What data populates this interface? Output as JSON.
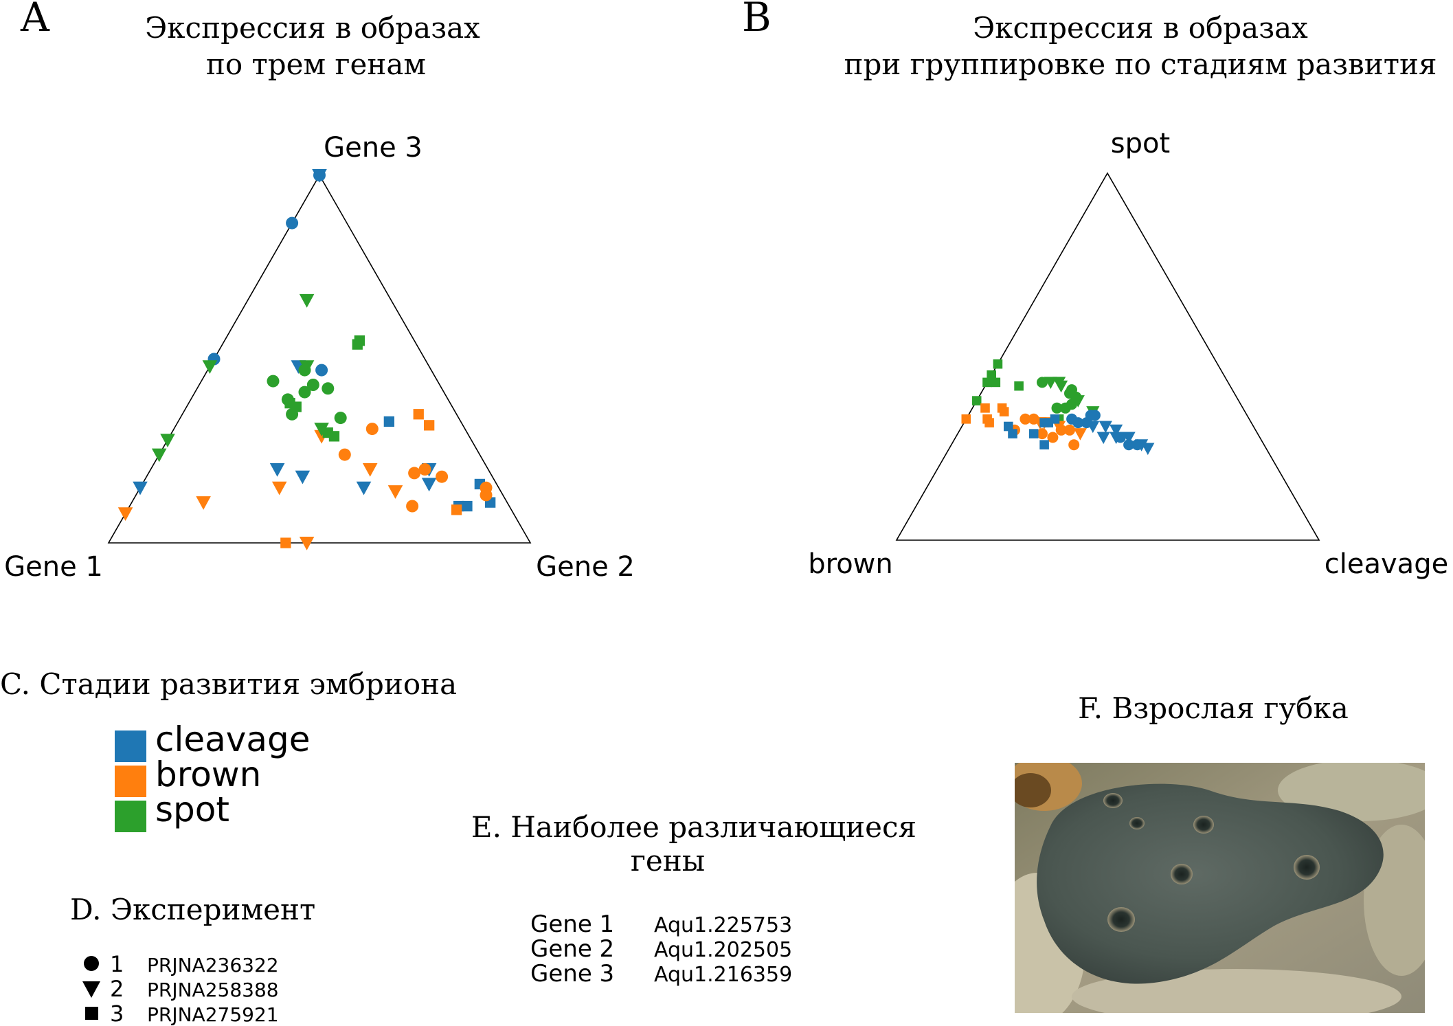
{
  "colors": {
    "cleavage": "#1f77b4",
    "brown": "#ff7f0e",
    "spot": "#2ca02c"
  },
  "panel_a": {
    "letter": "A",
    "title_line1": "Экспрессия в образах",
    "title_line2": "по трем генам",
    "vertex_top": "Gene 3",
    "vertex_left": "Gene 1",
    "vertex_right": "Gene 2"
  },
  "panel_b": {
    "letter": "B",
    "title_line1": "Экспрессия в образах",
    "title_line2": "при группировке по стадиям развития",
    "vertex_top": "spot",
    "vertex_left": "brown",
    "vertex_right": "cleavage"
  },
  "legend_stages": {
    "title": "C. Стадии развития эмбриона",
    "items": [
      {
        "label": "cleavage",
        "color": "#1f77b4"
      },
      {
        "label": "brown",
        "color": "#ff7f0e"
      },
      {
        "label": "spot",
        "color": "#2ca02c"
      }
    ]
  },
  "legend_experiment": {
    "title": "D. Эксперимент",
    "items": [
      {
        "marker": "circle",
        "num": "1",
        "id": "PRJNA236322"
      },
      {
        "marker": "triangle-down",
        "num": "2",
        "id": "PRJNA258388"
      },
      {
        "marker": "square",
        "num": "3",
        "id": "PRJNA275921"
      }
    ]
  },
  "genes": {
    "title_line1": "E. Наиболее различающиеся",
    "title_line2": "гены",
    "items": [
      {
        "name": "Gene 1",
        "id": "Aqu1.225753"
      },
      {
        "name": "Gene 2",
        "id": "Aqu1.202505"
      },
      {
        "name": "Gene 3",
        "id": "Aqu1.216359"
      }
    ]
  },
  "photo": {
    "title": "F. Взрослая губка"
  },
  "chart_data": [
    {
      "type": "scatter",
      "subtype": "ternary",
      "title": "Экспрессия в образах по трем генам",
      "axes": [
        "Gene 1",
        "Gene 2",
        "Gene 3"
      ],
      "series": [
        {
          "name": "cleavage",
          "points": [
            {
              "a": 0.0,
              "b": 0.0,
              "c": 1.0,
              "m": "triangle-down"
            },
            {
              "a": 0.0,
              "b": 0.0,
              "c": 1.0,
              "m": "circle"
            },
            {
              "a": 0.13,
              "b": 0.0,
              "c": 0.87,
              "m": "circle"
            },
            {
              "a": 0.31,
              "b": 0.21,
              "c": 0.48,
              "m": "triangle-down"
            },
            {
              "a": 0.26,
              "b": 0.27,
              "c": 0.47,
              "m": "circle"
            },
            {
              "a": 0.5,
              "b": 0.0,
              "c": 0.5,
              "m": "circle"
            },
            {
              "a": 0.17,
              "b": 0.5,
              "c": 0.33,
              "m": "square"
            },
            {
              "a": 0.16,
              "b": 0.68,
              "c": 0.16,
              "m": "triangle-down"
            },
            {
              "a": 0.14,
              "b": 0.66,
              "c": 0.2,
              "m": "triangle-down"
            },
            {
              "a": 0.32,
              "b": 0.53,
              "c": 0.15,
              "m": "triangle-down"
            },
            {
              "a": 0.04,
              "b": 0.8,
              "c": 0.16,
              "m": "square"
            },
            {
              "a": 0.04,
              "b": 0.85,
              "c": 0.11,
              "m": "square"
            },
            {
              "a": 0.5,
              "b": 0.3,
              "c": 0.2,
              "m": "triangle-down"
            },
            {
              "a": 0.45,
              "b": 0.37,
              "c": 0.18,
              "m": "triangle-down"
            },
            {
              "a": 0.1,
              "b": 0.8,
              "c": 0.1,
              "m": "square"
            },
            {
              "a": 0.12,
              "b": 0.78,
              "c": 0.1,
              "m": "square"
            },
            {
              "a": 0.85,
              "b": 0.0,
              "c": 0.15,
              "m": "triangle-down"
            }
          ]
        },
        {
          "name": "brown",
          "points": [
            {
              "a": 0.22,
              "b": 0.47,
              "c": 0.31,
              "m": "circle"
            },
            {
              "a": 0.09,
              "b": 0.56,
              "c": 0.35,
              "m": "square"
            },
            {
              "a": 0.08,
              "b": 0.6,
              "c": 0.32,
              "m": "square"
            },
            {
              "a": 0.35,
              "b": 0.36,
              "c": 0.29,
              "m": "triangle-down"
            },
            {
              "a": 0.32,
              "b": 0.44,
              "c": 0.24,
              "m": "circle"
            },
            {
              "a": 0.28,
              "b": 0.52,
              "c": 0.2,
              "m": "triangle-down"
            },
            {
              "a": 0.18,
              "b": 0.63,
              "c": 0.19,
              "m": "circle"
            },
            {
              "a": 0.12,
              "b": 0.7,
              "c": 0.18,
              "m": "circle"
            },
            {
              "a": 0.15,
              "b": 0.65,
              "c": 0.2,
              "m": "circle"
            },
            {
              "a": 0.03,
              "b": 0.82,
              "c": 0.15,
              "m": "circle"
            },
            {
              "a": 0.04,
              "b": 0.83,
              "c": 0.13,
              "m": "circle"
            },
            {
              "a": 0.25,
              "b": 0.61,
              "c": 0.14,
              "m": "triangle-down"
            },
            {
              "a": 0.23,
              "b": 0.67,
              "c": 0.1,
              "m": "circle"
            },
            {
              "a": 0.52,
              "b": 0.33,
              "c": 0.15,
              "m": "triangle-down"
            },
            {
              "a": 0.92,
              "b": 0.0,
              "c": 0.08,
              "m": "triangle-down"
            },
            {
              "a": 0.72,
              "b": 0.17,
              "c": 0.11,
              "m": "triangle-down"
            },
            {
              "a": 0.58,
              "b": 0.42,
              "c": 0.0,
              "m": "square"
            },
            {
              "a": 0.53,
              "b": 0.47,
              "c": 0.0,
              "m": "triangle-down"
            },
            {
              "a": 0.13,
              "b": 0.78,
              "c": 0.09,
              "m": "square"
            }
          ]
        },
        {
          "name": "spot",
          "points": [
            {
              "a": 0.2,
              "b": 0.14,
              "c": 0.66,
              "m": "triangle-down"
            },
            {
              "a": 0.13,
              "b": 0.32,
              "c": 0.55,
              "m": "square"
            },
            {
              "a": 0.14,
              "b": 0.32,
              "c": 0.54,
              "m": "square"
            },
            {
              "a": 0.29,
              "b": 0.23,
              "c": 0.48,
              "m": "triangle-down"
            },
            {
              "a": 0.52,
              "b": 0.0,
              "c": 0.48,
              "m": "triangle-down"
            },
            {
              "a": 0.3,
              "b": 0.23,
              "c": 0.47,
              "m": "circle"
            },
            {
              "a": 0.39,
              "b": 0.17,
              "c": 0.44,
              "m": "circle"
            },
            {
              "a": 0.3,
              "b": 0.27,
              "c": 0.43,
              "m": "circle"
            },
            {
              "a": 0.27,
              "b": 0.31,
              "c": 0.42,
              "m": "circle"
            },
            {
              "a": 0.33,
              "b": 0.26,
              "c": 0.41,
              "m": "circle"
            },
            {
              "a": 0.38,
              "b": 0.23,
              "c": 0.39,
              "m": "circle"
            },
            {
              "a": 0.38,
              "b": 0.24,
              "c": 0.38,
              "m": "square"
            },
            {
              "a": 0.37,
              "b": 0.26,
              "c": 0.37,
              "m": "square"
            },
            {
              "a": 0.39,
              "b": 0.26,
              "c": 0.35,
              "m": "circle"
            },
            {
              "a": 0.28,
              "b": 0.38,
              "c": 0.34,
              "m": "circle"
            },
            {
              "a": 0.34,
              "b": 0.35,
              "c": 0.31,
              "m": "triangle-down"
            },
            {
              "a": 0.33,
              "b": 0.37,
              "c": 0.3,
              "m": "square"
            },
            {
              "a": 0.32,
              "b": 0.39,
              "c": 0.29,
              "m": "square"
            },
            {
              "a": 0.72,
              "b": 0.0,
              "c": 0.28,
              "m": "triangle-down"
            },
            {
              "a": 0.76,
              "b": 0.0,
              "c": 0.24,
              "m": "triangle-down"
            }
          ]
        }
      ]
    },
    {
      "type": "scatter",
      "subtype": "ternary",
      "title": "Экспрессия в образах при группировке по стадиям развития",
      "axes": [
        "brown",
        "cleavage",
        "spot"
      ],
      "series": [
        {
          "name": "spot",
          "points": [
            {
              "a": 0.55,
              "b": 0.0,
              "c": 0.45,
              "m": "square"
            },
            {
              "a": 0.52,
              "b": 0.0,
              "c": 0.48,
              "m": "square"
            },
            {
              "a": 0.55,
              "b": 0.02,
              "c": 0.43,
              "m": "square"
            },
            {
              "a": 0.57,
              "b": 0.0,
              "c": 0.43,
              "m": "square"
            },
            {
              "a": 0.5,
              "b": 0.08,
              "c": 0.42,
              "m": "square"
            },
            {
              "a": 0.62,
              "b": 0.0,
              "c": 0.38,
              "m": "square"
            },
            {
              "a": 0.44,
              "b": 0.13,
              "c": 0.43,
              "m": "circle"
            },
            {
              "a": 0.42,
              "b": 0.15,
              "c": 0.43,
              "m": "triangle-down"
            },
            {
              "a": 0.4,
              "b": 0.17,
              "c": 0.43,
              "m": "triangle-down"
            },
            {
              "a": 0.4,
              "b": 0.18,
              "c": 0.42,
              "m": "triangle-down"
            },
            {
              "a": 0.38,
              "b": 0.21,
              "c": 0.41,
              "m": "circle"
            },
            {
              "a": 0.39,
              "b": 0.21,
              "c": 0.4,
              "m": "circle"
            },
            {
              "a": 0.4,
              "b": 0.23,
              "c": 0.37,
              "m": "circle"
            },
            {
              "a": 0.38,
              "b": 0.23,
              "c": 0.39,
              "m": "circle"
            },
            {
              "a": 0.38,
              "b": 0.24,
              "c": 0.38,
              "m": "triangle-down"
            },
            {
              "a": 0.42,
              "b": 0.22,
              "c": 0.36,
              "m": "circle"
            },
            {
              "a": 0.44,
              "b": 0.2,
              "c": 0.36,
              "m": "circle"
            },
            {
              "a": 0.36,
              "b": 0.29,
              "c": 0.35,
              "m": "triangle-down"
            },
            {
              "a": 0.45,
              "b": 0.22,
              "c": 0.33,
              "m": "square"
            }
          ]
        },
        {
          "name": "brown",
          "points": [
            {
              "a": 0.67,
              "b": 0.0,
              "c": 0.33,
              "m": "square"
            },
            {
              "a": 0.61,
              "b": 0.03,
              "c": 0.36,
              "m": "square"
            },
            {
              "a": 0.57,
              "b": 0.08,
              "c": 0.35,
              "m": "square"
            },
            {
              "a": 0.57,
              "b": 0.07,
              "c": 0.36,
              "m": "square"
            },
            {
              "a": 0.62,
              "b": 0.05,
              "c": 0.33,
              "m": "square"
            },
            {
              "a": 0.62,
              "b": 0.06,
              "c": 0.32,
              "m": "square"
            },
            {
              "a": 0.57,
              "b": 0.13,
              "c": 0.3,
              "m": "circle"
            },
            {
              "a": 0.53,
              "b": 0.14,
              "c": 0.33,
              "m": "circle"
            },
            {
              "a": 0.51,
              "b": 0.16,
              "c": 0.33,
              "m": "circle"
            },
            {
              "a": 0.5,
              "b": 0.18,
              "c": 0.32,
              "m": "triangle-down"
            },
            {
              "a": 0.49,
              "b": 0.19,
              "c": 0.32,
              "m": "triangle-down"
            },
            {
              "a": 0.51,
              "b": 0.2,
              "c": 0.29,
              "m": "circle"
            },
            {
              "a": 0.49,
              "b": 0.23,
              "c": 0.28,
              "m": "circle"
            },
            {
              "a": 0.46,
              "b": 0.24,
              "c": 0.3,
              "m": "circle"
            },
            {
              "a": 0.46,
              "b": 0.23,
              "c": 0.31,
              "m": "triangle-down"
            },
            {
              "a": 0.44,
              "b": 0.26,
              "c": 0.3,
              "m": "circle"
            },
            {
              "a": 0.45,
              "b": 0.29,
              "c": 0.26,
              "m": "circle"
            },
            {
              "a": 0.42,
              "b": 0.29,
              "c": 0.29,
              "m": "triangle-down"
            }
          ]
        },
        {
          "name": "cleavage",
          "points": [
            {
              "a": 0.49,
              "b": 0.19,
              "c": 0.32,
              "m": "square"
            },
            {
              "a": 0.48,
              "b": 0.2,
              "c": 0.32,
              "m": "square"
            },
            {
              "a": 0.46,
              "b": 0.21,
              "c": 0.33,
              "m": "square"
            },
            {
              "a": 0.58,
              "b": 0.11,
              "c": 0.31,
              "m": "square"
            },
            {
              "a": 0.58,
              "b": 0.13,
              "c": 0.29,
              "m": "square"
            },
            {
              "a": 0.53,
              "b": 0.18,
              "c": 0.29,
              "m": "square"
            },
            {
              "a": 0.52,
              "b": 0.22,
              "c": 0.26,
              "m": "square"
            },
            {
              "a": 0.42,
              "b": 0.25,
              "c": 0.33,
              "m": "circle"
            },
            {
              "a": 0.41,
              "b": 0.27,
              "c": 0.32,
              "m": "circle"
            },
            {
              "a": 0.39,
              "b": 0.29,
              "c": 0.32,
              "m": "circle"
            },
            {
              "a": 0.37,
              "b": 0.29,
              "c": 0.34,
              "m": "circle"
            },
            {
              "a": 0.36,
              "b": 0.3,
              "c": 0.34,
              "m": "circle"
            },
            {
              "a": 0.38,
              "b": 0.31,
              "c": 0.31,
              "m": "triangle-down"
            },
            {
              "a": 0.35,
              "b": 0.34,
              "c": 0.31,
              "m": "triangle-down"
            },
            {
              "a": 0.33,
              "b": 0.37,
              "c": 0.3,
              "m": "triangle-down"
            },
            {
              "a": 0.37,
              "b": 0.35,
              "c": 0.28,
              "m": "triangle-down"
            },
            {
              "a": 0.34,
              "b": 0.38,
              "c": 0.28,
              "m": "triangle-down"
            },
            {
              "a": 0.33,
              "b": 0.39,
              "c": 0.28,
              "m": "circle"
            },
            {
              "a": 0.32,
              "b": 0.42,
              "c": 0.26,
              "m": "circle"
            },
            {
              "a": 0.3,
              "b": 0.44,
              "c": 0.26,
              "m": "circle"
            },
            {
              "a": 0.29,
              "b": 0.45,
              "c": 0.26,
              "m": "triangle-down"
            },
            {
              "a": 0.28,
              "b": 0.47,
              "c": 0.25,
              "m": "triangle-down"
            },
            {
              "a": 0.31,
              "b": 0.41,
              "c": 0.28,
              "m": "triangle-down"
            }
          ]
        }
      ]
    }
  ]
}
